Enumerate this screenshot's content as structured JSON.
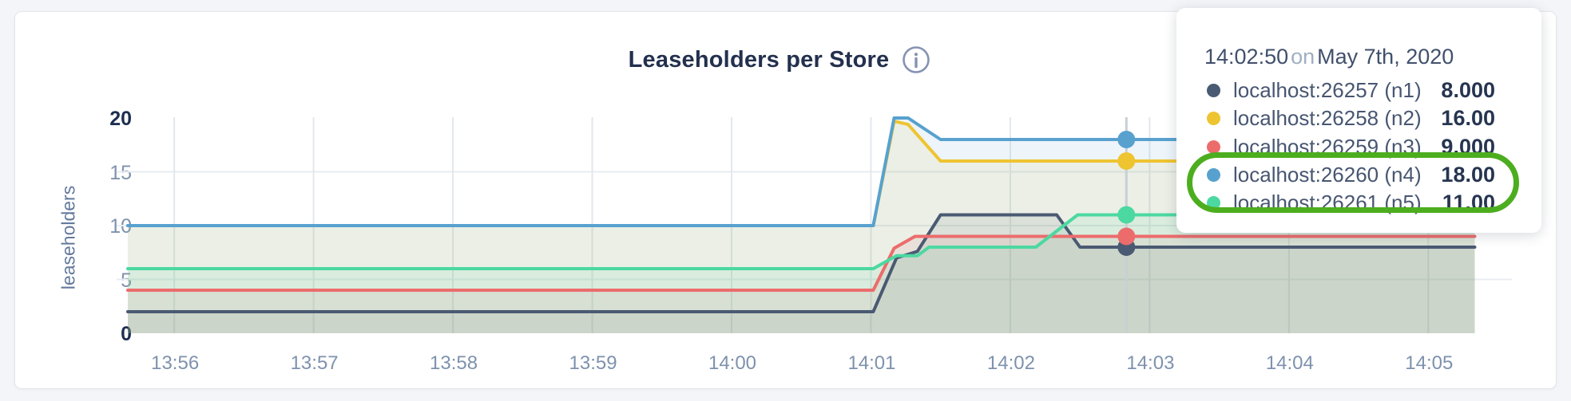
{
  "header": {
    "title": "Leaseholders per Store",
    "info_icon": "info-circle",
    "title_color": "#23304e"
  },
  "chart_data": {
    "type": "area",
    "title": "Leaseholders per Store",
    "xlabel": "",
    "ylabel": "leaseholders",
    "ylim": [
      0,
      20
    ],
    "yticks": [
      0,
      5,
      10,
      15,
      20
    ],
    "x_unit": "seconds after 13:55:40",
    "x_range_sec": [
      0,
      596
    ],
    "data_end_sec": 580,
    "grid": true,
    "xticks": [
      {
        "t": 20,
        "label": "13:56"
      },
      {
        "t": 80,
        "label": "13:57"
      },
      {
        "t": 140,
        "label": "13:58"
      },
      {
        "t": 200,
        "label": "13:59"
      },
      {
        "t": 260,
        "label": "14:00"
      },
      {
        "t": 320,
        "label": "14:01"
      },
      {
        "t": 380,
        "label": "14:02"
      },
      {
        "t": 440,
        "label": "14:03"
      },
      {
        "t": 500,
        "label": "14:04"
      },
      {
        "t": 560,
        "label": "14:05"
      }
    ],
    "series": [
      {
        "name": "localhost:26257 (n1)",
        "color": "#4a5a73",
        "points": [
          [
            0,
            2
          ],
          [
            321,
            2
          ],
          [
            331,
            7
          ],
          [
            340,
            7.6
          ],
          [
            350,
            11
          ],
          [
            400,
            11
          ],
          [
            410,
            8
          ],
          [
            580,
            8
          ]
        ]
      },
      {
        "name": "localhost:26258 (n2)",
        "color": "#eec431",
        "points": [
          [
            0,
            10
          ],
          [
            321,
            10
          ],
          [
            330,
            19.7
          ],
          [
            336,
            19.4
          ],
          [
            350,
            16
          ],
          [
            580,
            16
          ]
        ]
      },
      {
        "name": "localhost:26259 (n3)",
        "color": "#ec6c6c",
        "points": [
          [
            0,
            4
          ],
          [
            321,
            4
          ],
          [
            330,
            7.9
          ],
          [
            339,
            9
          ],
          [
            580,
            9
          ]
        ]
      },
      {
        "name": "localhost:26260 (n4)",
        "color": "#58a1cf",
        "points": [
          [
            0,
            10
          ],
          [
            321,
            10
          ],
          [
            330,
            20
          ],
          [
            336,
            20
          ],
          [
            350,
            18
          ],
          [
            580,
            18
          ]
        ]
      },
      {
        "name": "localhost:26261 (n5)",
        "color": "#4cd8a1",
        "points": [
          [
            0,
            6
          ],
          [
            321,
            6
          ],
          [
            331,
            7.2
          ],
          [
            340,
            7.2
          ],
          [
            345,
            8
          ],
          [
            391,
            8
          ],
          [
            409,
            11
          ],
          [
            580,
            11
          ]
        ]
      }
    ],
    "hover": {
      "t": 430,
      "values": [
        8,
        16,
        9,
        18,
        11
      ],
      "line_color": "#c9cfd6"
    }
  },
  "tooltip": {
    "time": "14:02:50",
    "connector": "on",
    "date": "May 7th, 2020",
    "rows": [
      {
        "label": "localhost:26257 (n1)",
        "value": "8.000",
        "color": "#4a5a73",
        "highlighted": false
      },
      {
        "label": "localhost:26258 (n2)",
        "value": "16.00",
        "color": "#eec431",
        "highlighted": false
      },
      {
        "label": "localhost:26259 (n3)",
        "value": "9.000",
        "color": "#ec6c6c",
        "highlighted": false
      },
      {
        "label": "localhost:26260 (n4)",
        "value": "18.00",
        "color": "#58a1cf",
        "highlighted": true
      },
      {
        "label": "localhost:26261 (n5)",
        "value": "11.00",
        "color": "#4cd8a1",
        "highlighted": true
      }
    ],
    "annotation_color": "#4cae1f"
  }
}
